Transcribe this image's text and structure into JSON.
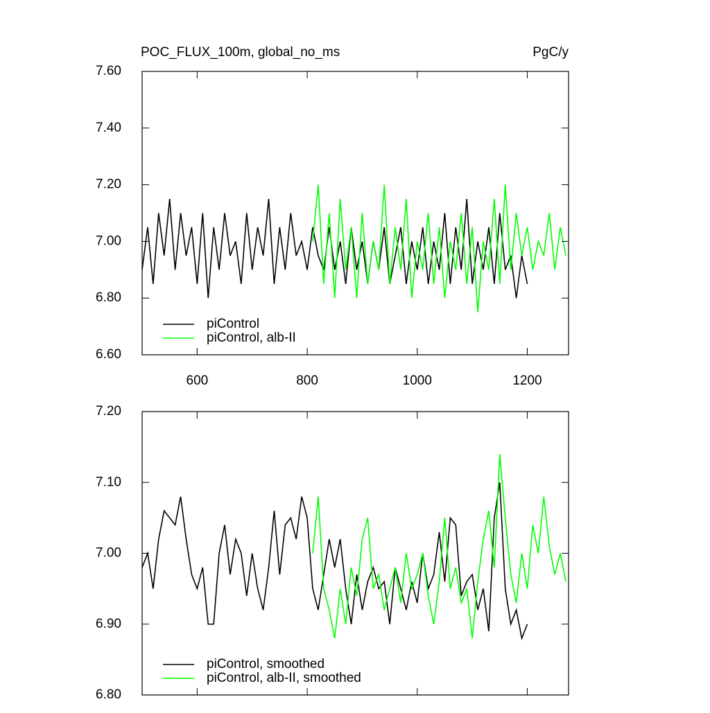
{
  "chart_data": [
    {
      "type": "line",
      "title": "POC_FLUX_100m, global_no_ms",
      "units": "PgC/y",
      "xlim": [
        500,
        1275
      ],
      "xticks": [
        600,
        800,
        1000,
        1200
      ],
      "xtick_labels": true,
      "ylim": [
        6.6,
        7.6
      ],
      "yticks": [
        {
          "value": 6.6,
          "label": "6.60"
        },
        {
          "value": 6.8,
          "label": "6.80"
        },
        {
          "value": 7.0,
          "label": "7.00"
        },
        {
          "value": 7.2,
          "label": "7.20"
        },
        {
          "value": 7.4,
          "label": "7.40"
        },
        {
          "value": 7.6,
          "label": "7.60"
        }
      ],
      "legend": "lower left",
      "series": [
        {
          "name": "piControl",
          "color": "#000000",
          "x": [
            500,
            510,
            520,
            530,
            540,
            550,
            560,
            570,
            580,
            590,
            600,
            610,
            620,
            630,
            640,
            650,
            660,
            670,
            680,
            690,
            700,
            710,
            720,
            730,
            740,
            750,
            760,
            770,
            780,
            790,
            800,
            810,
            820,
            830,
            840,
            850,
            860,
            870,
            880,
            890,
            900,
            910,
            920,
            930,
            940,
            950,
            960,
            970,
            980,
            990,
            1000,
            1010,
            1020,
            1030,
            1040,
            1050,
            1060,
            1070,
            1080,
            1090,
            1100,
            1110,
            1120,
            1130,
            1140,
            1150,
            1160,
            1170,
            1180,
            1190,
            1200
          ],
          "values": [
            6.9,
            7.05,
            6.85,
            7.1,
            6.95,
            7.15,
            6.9,
            7.1,
            6.95,
            7.05,
            6.85,
            7.1,
            6.8,
            7.05,
            6.9,
            7.1,
            6.95,
            7.0,
            6.85,
            7.1,
            6.9,
            7.05,
            6.95,
            7.15,
            6.85,
            7.05,
            6.9,
            7.1,
            6.95,
            7.0,
            6.9,
            7.05,
            6.95,
            6.9,
            7.05,
            6.9,
            7.0,
            6.85,
            7.05,
            6.9,
            7.0,
            6.85,
            7.0,
            6.9,
            7.05,
            6.85,
            6.95,
            7.05,
            6.85,
            7.0,
            6.9,
            7.05,
            6.85,
            7.0,
            6.9,
            7.1,
            6.85,
            7.05,
            6.9,
            7.15,
            6.85,
            7.0,
            6.9,
            7.05,
            6.85,
            7.1,
            6.9,
            6.95,
            6.8,
            6.95,
            6.85
          ]
        },
        {
          "name": "piControl, alb-II",
          "color": "#00ff00",
          "x": [
            810,
            820,
            830,
            840,
            850,
            860,
            870,
            880,
            890,
            900,
            910,
            920,
            930,
            940,
            950,
            960,
            970,
            980,
            990,
            1000,
            1010,
            1020,
            1030,
            1040,
            1050,
            1060,
            1070,
            1080,
            1090,
            1100,
            1110,
            1120,
            1130,
            1140,
            1150,
            1160,
            1170,
            1180,
            1190,
            1200,
            1210,
            1220,
            1230,
            1240,
            1250,
            1260,
            1270
          ],
          "values": [
            7.0,
            7.2,
            6.85,
            7.1,
            6.8,
            7.15,
            6.9,
            7.05,
            6.8,
            7.1,
            6.85,
            7.0,
            6.9,
            7.2,
            6.85,
            7.05,
            6.9,
            7.15,
            6.8,
            7.0,
            6.9,
            7.1,
            6.85,
            7.05,
            6.8,
            7.0,
            6.9,
            7.1,
            6.85,
            7.05,
            6.75,
            7.0,
            6.9,
            7.15,
            6.85,
            7.2,
            6.9,
            7.1,
            6.95,
            7.05,
            6.9,
            7.0,
            6.95,
            7.1,
            6.9,
            7.05,
            6.95
          ]
        }
      ]
    },
    {
      "type": "line",
      "xlim": [
        500,
        1275
      ],
      "xticks": [
        600,
        800,
        1000,
        1200
      ],
      "xtick_labels": false,
      "ylim": [
        6.8,
        7.2
      ],
      "yticks": [
        {
          "value": 6.8,
          "label": "6.80"
        },
        {
          "value": 6.9,
          "label": "6.90"
        },
        {
          "value": 7.0,
          "label": "7.00"
        },
        {
          "value": 7.1,
          "label": "7.10"
        },
        {
          "value": 7.2,
          "label": "7.20"
        }
      ],
      "legend": "lower left",
      "series": [
        {
          "name": "piControl, smoothed",
          "color": "#000000",
          "x": [
            500,
            510,
            520,
            530,
            540,
            550,
            560,
            570,
            580,
            590,
            600,
            610,
            620,
            630,
            640,
            650,
            660,
            670,
            680,
            690,
            700,
            710,
            720,
            730,
            740,
            750,
            760,
            770,
            780,
            790,
            800,
            810,
            820,
            830,
            840,
            850,
            860,
            870,
            880,
            890,
            900,
            910,
            920,
            930,
            940,
            950,
            960,
            970,
            980,
            990,
            1000,
            1010,
            1020,
            1030,
            1040,
            1050,
            1060,
            1070,
            1080,
            1090,
            1100,
            1110,
            1120,
            1130,
            1140,
            1150,
            1160,
            1170,
            1180,
            1190,
            1200
          ],
          "values": [
            6.98,
            7.0,
            6.95,
            7.02,
            7.06,
            7.05,
            7.04,
            7.08,
            7.02,
            6.97,
            6.95,
            6.98,
            6.9,
            6.9,
            7.0,
            7.04,
            6.97,
            7.02,
            7.0,
            6.94,
            7.0,
            6.95,
            6.92,
            6.98,
            7.06,
            6.97,
            7.04,
            7.05,
            7.02,
            7.08,
            7.05,
            6.95,
            6.92,
            6.97,
            7.02,
            6.98,
            7.02,
            6.95,
            6.9,
            6.97,
            6.92,
            6.96,
            6.98,
            6.95,
            6.96,
            6.9,
            6.98,
            6.95,
            6.92,
            6.96,
            6.93,
            7.0,
            6.95,
            6.97,
            7.03,
            6.96,
            7.05,
            7.04,
            6.94,
            6.96,
            6.97,
            6.92,
            6.95,
            6.89,
            7.05,
            7.1,
            6.95,
            6.9,
            6.92,
            6.88,
            6.9
          ]
        },
        {
          "name": "piControl, alb-II, smoothed",
          "color": "#00ff00",
          "x": [
            810,
            820,
            830,
            840,
            850,
            860,
            870,
            880,
            890,
            900,
            910,
            920,
            930,
            940,
            950,
            960,
            970,
            980,
            990,
            1000,
            1010,
            1020,
            1030,
            1040,
            1050,
            1060,
            1070,
            1080,
            1090,
            1100,
            1110,
            1120,
            1130,
            1140,
            1150,
            1160,
            1170,
            1180,
            1190,
            1200,
            1210,
            1220,
            1230,
            1240,
            1250,
            1260,
            1270
          ],
          "values": [
            7.0,
            7.08,
            6.95,
            6.92,
            6.88,
            6.95,
            6.9,
            6.98,
            6.94,
            7.02,
            7.05,
            6.95,
            6.97,
            6.92,
            6.95,
            6.98,
            6.93,
            7.0,
            6.95,
            6.97,
            7.0,
            6.94,
            6.9,
            6.96,
            7.05,
            6.95,
            6.98,
            6.93,
            6.95,
            6.88,
            6.96,
            7.02,
            7.06,
            6.98,
            7.14,
            7.05,
            6.97,
            6.93,
            7.0,
            6.95,
            7.04,
            7.0,
            7.08,
            7.01,
            6.97,
            7.0,
            6.96
          ]
        }
      ]
    }
  ]
}
